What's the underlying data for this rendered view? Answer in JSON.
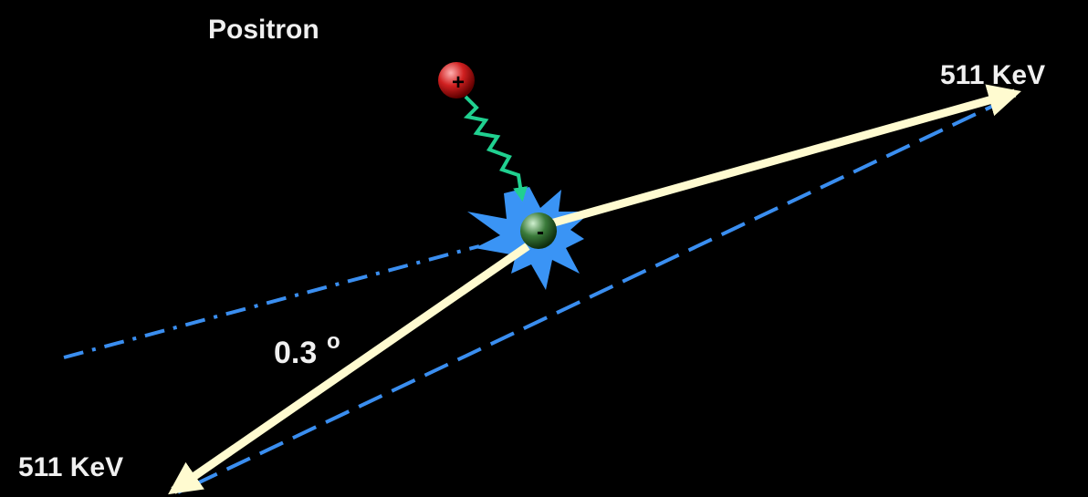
{
  "labels": {
    "positron": "Positron",
    "energy_right": "511 KeV",
    "energy_left": "511 KeV",
    "angle": "0.3",
    "angle_unit": "o"
  },
  "particles": {
    "positron_sign": "+",
    "electron_sign": "-"
  }
}
